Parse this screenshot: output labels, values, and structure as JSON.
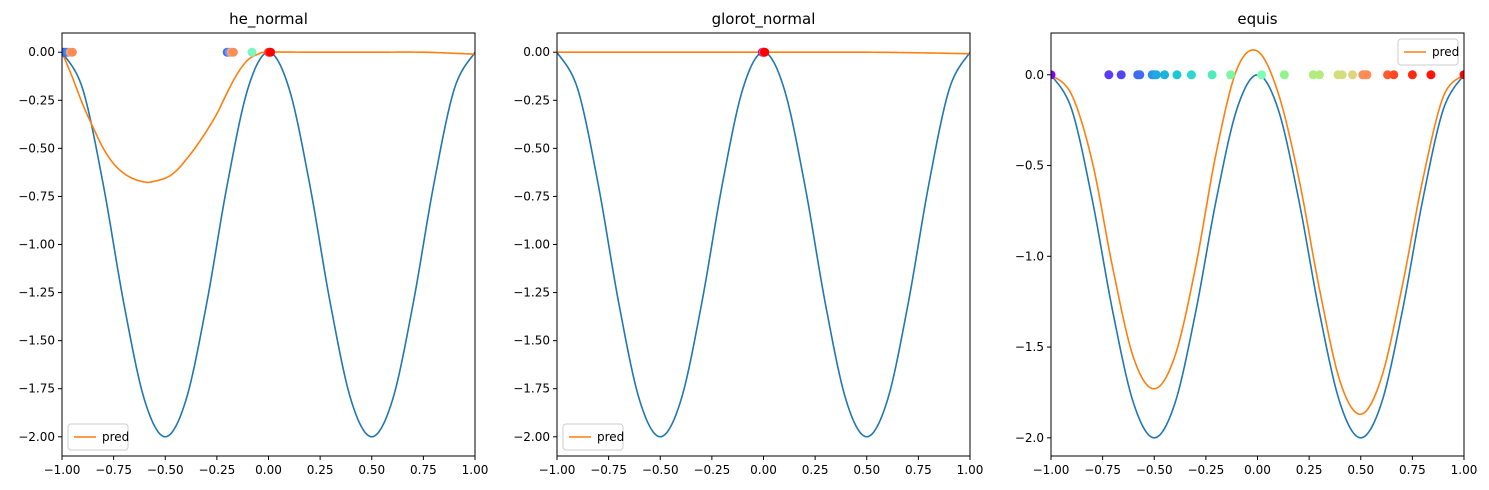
{
  "chart_data": [
    {
      "type": "line",
      "title": "he_normal",
      "xlabel": "",
      "ylabel": "",
      "xlim": [
        -1.0,
        1.0
      ],
      "ylim": [
        -2.1,
        0.1
      ],
      "grid": false,
      "xticks": [
        -1.0,
        -0.75,
        -0.5,
        -0.25,
        0.0,
        0.25,
        0.5,
        0.75,
        1.0
      ],
      "xtick_labels": [
        "−1.00",
        "−0.75",
        "−0.50",
        "−0.25",
        "0.00",
        "0.25",
        "0.50",
        "0.75",
        "1.00"
      ],
      "yticks": [
        0.0,
        -0.25,
        -0.5,
        -0.75,
        -1.0,
        -1.25,
        -1.5,
        -1.75,
        -2.0
      ],
      "ytick_labels": [
        "0.00",
        "−0.25",
        "−0.50",
        "−0.75",
        "−1.00",
        "−1.25",
        "−1.50",
        "−1.75",
        "−2.00"
      ],
      "legend": {
        "position": "lower-left",
        "entries": [
          "pred"
        ]
      },
      "series": [
        {
          "role": "target",
          "color": "#1f77b4",
          "x": [
            -1.0,
            -0.9,
            -0.8,
            -0.7,
            -0.6,
            -0.5,
            -0.4,
            -0.3,
            -0.2,
            -0.1,
            0.0,
            0.1,
            0.2,
            0.3,
            0.4,
            0.5,
            0.6,
            0.7,
            0.8,
            0.9,
            1.0
          ],
          "y": [
            0.0,
            -0.19,
            -0.69,
            -1.31,
            -1.81,
            -2.0,
            -1.81,
            -1.31,
            -0.69,
            -0.19,
            0.0,
            -0.19,
            -0.69,
            -1.31,
            -1.81,
            -2.0,
            -1.81,
            -1.31,
            -0.69,
            -0.19,
            0.0
          ]
        },
        {
          "name": "pred",
          "color": "#ff7f0e",
          "x": [
            -1.0,
            -0.95,
            -0.9,
            -0.85,
            -0.8,
            -0.75,
            -0.7,
            -0.65,
            -0.6,
            -0.57,
            -0.5,
            -0.45,
            -0.4,
            -0.35,
            -0.3,
            -0.25,
            -0.2,
            -0.15,
            -0.1,
            -0.05,
            0.0,
            0.25,
            0.5,
            0.75,
            1.0
          ],
          "y": [
            0.0,
            -0.13,
            -0.27,
            -0.39,
            -0.5,
            -0.58,
            -0.63,
            -0.66,
            -0.675,
            -0.675,
            -0.655,
            -0.62,
            -0.56,
            -0.49,
            -0.41,
            -0.32,
            -0.21,
            -0.11,
            -0.04,
            -0.01,
            0.0,
            0.0,
            0.0,
            0.0,
            -0.01
          ]
        }
      ],
      "points": {
        "x": [
          -1.0,
          -0.99,
          -0.98,
          -0.97,
          -0.96,
          -0.95,
          -0.2,
          -0.19,
          -0.18,
          -0.17,
          -0.08,
          0.0,
          0.005,
          0.01
        ],
        "colors": [
          "#8000ff",
          "#5a3cf7",
          "#3a73f3",
          "#4686f2",
          "#f2aa6a",
          "#ff8855",
          "#3e6cf4",
          "#6d9af3",
          "#f4a66e",
          "#ff8c56",
          "#7df5c0",
          "#ff4a26",
          "#ff3010",
          "#ff0000"
        ]
      }
    },
    {
      "type": "line",
      "title": "glorot_normal",
      "xlabel": "",
      "ylabel": "",
      "xlim": [
        -1.0,
        1.0
      ],
      "ylim": [
        -2.1,
        0.1
      ],
      "grid": false,
      "xticks": [
        -1.0,
        -0.75,
        -0.5,
        -0.25,
        0.0,
        0.25,
        0.5,
        0.75,
        1.0
      ],
      "xtick_labels": [
        "−1.00",
        "−0.75",
        "−0.50",
        "−0.25",
        "0.00",
        "0.25",
        "0.50",
        "0.75",
        "1.00"
      ],
      "yticks": [
        0.0,
        -0.25,
        -0.5,
        -0.75,
        -1.0,
        -1.25,
        -1.5,
        -1.75,
        -2.0
      ],
      "ytick_labels": [
        "0.00",
        "−0.25",
        "−0.50",
        "−0.75",
        "−1.00",
        "−1.25",
        "−1.50",
        "−1.75",
        "−2.00"
      ],
      "legend": {
        "position": "lower-left",
        "entries": [
          "pred"
        ]
      },
      "series": [
        {
          "role": "target",
          "color": "#1f77b4",
          "x": [
            -1.0,
            -0.9,
            -0.8,
            -0.7,
            -0.6,
            -0.5,
            -0.4,
            -0.3,
            -0.2,
            -0.1,
            0.0,
            0.1,
            0.2,
            0.3,
            0.4,
            0.5,
            0.6,
            0.7,
            0.8,
            0.9,
            1.0
          ],
          "y": [
            0.0,
            -0.19,
            -0.69,
            -1.31,
            -1.81,
            -2.0,
            -1.81,
            -1.31,
            -0.69,
            -0.19,
            0.0,
            -0.19,
            -0.69,
            -1.31,
            -1.81,
            -2.0,
            -1.81,
            -1.31,
            -0.69,
            -0.19,
            0.0
          ]
        },
        {
          "name": "pred",
          "color": "#ff7f0e",
          "x": [
            -1.0,
            -0.5,
            0.0,
            0.5,
            0.75,
            1.0
          ],
          "y": [
            0.0,
            0.0,
            0.0,
            0.0,
            -0.003,
            -0.008
          ]
        }
      ],
      "points": {
        "x": [
          -0.005,
          0.0,
          0.003,
          0.006
        ],
        "colors": [
          "#8000ff",
          "#ff8040",
          "#ff2a14",
          "#ff0000"
        ]
      }
    },
    {
      "type": "line",
      "title": "equis",
      "xlabel": "",
      "ylabel": "",
      "xlim": [
        -1.0,
        1.0
      ],
      "ylim": [
        -2.1,
        0.23
      ],
      "grid": false,
      "xticks": [
        -1.0,
        -0.75,
        -0.5,
        -0.25,
        0.0,
        0.25,
        0.5,
        0.75,
        1.0
      ],
      "xtick_labels": [
        "−1.00",
        "−0.75",
        "−0.50",
        "−0.25",
        "0.00",
        "0.25",
        "0.50",
        "0.75",
        "1.00"
      ],
      "yticks": [
        0.0,
        -0.5,
        -1.0,
        -1.5,
        -2.0
      ],
      "ytick_labels": [
        "0.0",
        "−0.5",
        "−1.0",
        "−1.5",
        "−2.0"
      ],
      "legend": {
        "position": "top-right",
        "entries": [
          "pred"
        ]
      },
      "series": [
        {
          "role": "target",
          "color": "#1f77b4",
          "x": [
            -1.0,
            -0.9,
            -0.8,
            -0.7,
            -0.6,
            -0.5,
            -0.4,
            -0.3,
            -0.2,
            -0.1,
            0.0,
            0.1,
            0.2,
            0.3,
            0.4,
            0.5,
            0.6,
            0.7,
            0.8,
            0.9,
            1.0
          ],
          "y": [
            0.0,
            -0.19,
            -0.69,
            -1.31,
            -1.81,
            -2.0,
            -1.81,
            -1.31,
            -0.69,
            -0.19,
            0.0,
            -0.19,
            -0.69,
            -1.31,
            -1.81,
            -2.0,
            -1.81,
            -1.31,
            -0.69,
            -0.19,
            0.0
          ]
        },
        {
          "name": "pred",
          "color": "#ff7f0e",
          "x": [
            -1.0,
            -0.9,
            -0.8,
            -0.7,
            -0.6,
            -0.5,
            -0.4,
            -0.3,
            -0.2,
            -0.1,
            0.0,
            0.1,
            0.2,
            0.3,
            0.4,
            0.5,
            0.6,
            0.7,
            0.8,
            0.9,
            1.0
          ],
          "y": [
            0.0,
            -0.11,
            -0.48,
            -1.07,
            -1.56,
            -1.73,
            -1.55,
            -1.06,
            -0.43,
            0.03,
            0.13,
            -0.1,
            -0.57,
            -1.18,
            -1.69,
            -1.87,
            -1.67,
            -1.17,
            -0.58,
            -0.12,
            0.0
          ]
        }
      ],
      "points": {
        "x": [
          -1.0,
          -0.72,
          -0.66,
          -0.58,
          -0.57,
          -0.51,
          -0.5,
          -0.49,
          -0.45,
          -0.39,
          -0.32,
          -0.22,
          -0.13,
          0.02,
          0.13,
          0.27,
          0.3,
          0.39,
          0.41,
          0.46,
          0.51,
          0.52,
          0.53,
          0.63,
          0.66,
          0.75,
          0.84,
          1.0
        ],
        "colors": [
          "#8000ff",
          "#5a3cf7",
          "#5046f5",
          "#3e6cf4",
          "#3e6cf4",
          "#2a94e8",
          "#2a94e8",
          "#20a8e2",
          "#19b3de",
          "#1ac7d7",
          "#2ad8cd",
          "#4eecba",
          "#7cf6a3",
          "#80ffb4",
          "#8ff58a",
          "#b4eb7f",
          "#b4eb7f",
          "#d4dd80",
          "#d4dd80",
          "#ddd67e",
          "#ff8c56",
          "#ff8c56",
          "#ff8c56",
          "#ff5a30",
          "#ff4a26",
          "#ff2a14",
          "#ff1408",
          "#ff0000"
        ]
      }
    }
  ]
}
